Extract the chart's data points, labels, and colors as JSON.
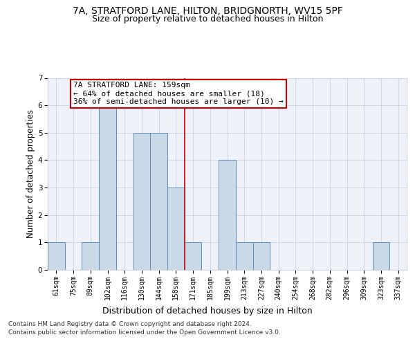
{
  "title": "7A, STRATFORD LANE, HILTON, BRIDGNORTH, WV15 5PF",
  "subtitle": "Size of property relative to detached houses in Hilton",
  "xlabel": "Distribution of detached houses by size in Hilton",
  "ylabel": "Number of detached properties",
  "categories": [
    "61sqm",
    "75sqm",
    "89sqm",
    "102sqm",
    "116sqm",
    "130sqm",
    "144sqm",
    "158sqm",
    "171sqm",
    "185sqm",
    "199sqm",
    "213sqm",
    "227sqm",
    "240sqm",
    "254sqm",
    "268sqm",
    "282sqm",
    "296sqm",
    "309sqm",
    "323sqm",
    "337sqm"
  ],
  "values": [
    1,
    0,
    1,
    6,
    0,
    5,
    5,
    3,
    1,
    0,
    4,
    1,
    1,
    0,
    0,
    0,
    0,
    0,
    0,
    1,
    0
  ],
  "bar_color": "#c9d9e8",
  "bar_edge_color": "#5b8db8",
  "vline_index": 7.5,
  "vline_color": "#cc0000",
  "annotation_box_text": "7A STRATFORD LANE: 159sqm\n← 64% of detached houses are smaller (18)\n36% of semi-detached houses are larger (10) →",
  "annotation_box_color": "#ffffff",
  "annotation_box_edge_color": "#cc0000",
  "ylim": [
    0,
    7
  ],
  "yticks": [
    0,
    1,
    2,
    3,
    4,
    5,
    6,
    7
  ],
  "grid_color": "#d0d8e8",
  "background_color": "#eef2f8",
  "footer_line1": "Contains HM Land Registry data © Crown copyright and database right 2024.",
  "footer_line2": "Contains public sector information licensed under the Open Government Licence v3.0.",
  "title_fontsize": 10,
  "subtitle_fontsize": 9,
  "xlabel_fontsize": 9,
  "ylabel_fontsize": 8.5,
  "tick_fontsize": 7,
  "annotation_fontsize": 8,
  "footer_fontsize": 6.5
}
